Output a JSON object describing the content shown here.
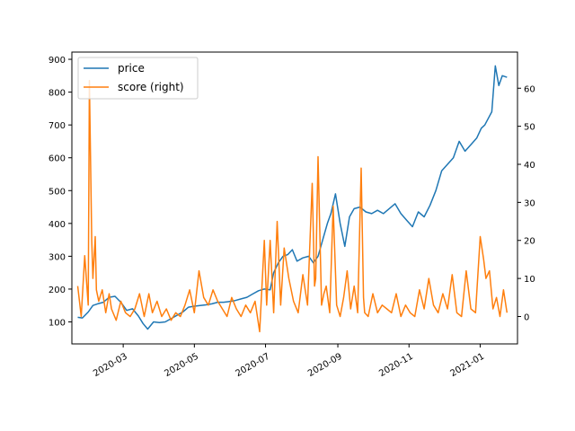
{
  "chart_data": {
    "type": "line",
    "title": "",
    "xlabel": "",
    "ylabel": "",
    "y2label": "",
    "xlim": [
      "2020-01-17",
      "2021-02-02"
    ],
    "ylim": [
      33,
      922
    ],
    "y2lim": [
      -7.2,
      69.5
    ],
    "x_ticks": [
      "2020-03",
      "2020-05",
      "2020-07",
      "2020-09",
      "2020-11",
      "2021-01"
    ],
    "x_tick_dates": [
      "2020-03-01",
      "2020-05-01",
      "2020-07-01",
      "2020-09-01",
      "2020-11-01",
      "2021-01-01"
    ],
    "y_ticks": [
      "100",
      "200",
      "300",
      "400",
      "500",
      "600",
      "700",
      "800",
      "900"
    ],
    "y2_ticks": [
      "0",
      "10",
      "20",
      "30",
      "40",
      "50",
      "60"
    ],
    "legend": {
      "position": "upper-left",
      "entries": [
        "price",
        "score (right)"
      ]
    },
    "colors": {
      "price": "#1f77b4",
      "score": "#ff7f0e"
    },
    "series": [
      {
        "name": "price",
        "axis": "left",
        "x": [
          "2020-01-22",
          "2020-01-26",
          "2020-01-31",
          "2020-02-04",
          "2020-02-08",
          "2020-02-13",
          "2020-02-18",
          "2020-02-23",
          "2020-02-28",
          "2020-03-04",
          "2020-03-09",
          "2020-03-14",
          "2020-03-18",
          "2020-03-22",
          "2020-03-27",
          "2020-04-01",
          "2020-04-06",
          "2020-04-11",
          "2020-04-16",
          "2020-04-21",
          "2020-04-26",
          "2020-05-01",
          "2020-05-06",
          "2020-05-11",
          "2020-05-16",
          "2020-05-21",
          "2020-05-26",
          "2020-05-31",
          "2020-06-05",
          "2020-06-10",
          "2020-06-15",
          "2020-06-20",
          "2020-06-25",
          "2020-06-30",
          "2020-07-05",
          "2020-07-08",
          "2020-07-12",
          "2020-07-16",
          "2020-07-20",
          "2020-07-24",
          "2020-07-28",
          "2020-08-02",
          "2020-08-07",
          "2020-08-11",
          "2020-08-15",
          "2020-08-19",
          "2020-08-23",
          "2020-08-26",
          "2020-08-30",
          "2020-09-03",
          "2020-09-07",
          "2020-09-11",
          "2020-09-15",
          "2020-09-20",
          "2020-09-25",
          "2020-09-30",
          "2020-10-05",
          "2020-10-10",
          "2020-10-15",
          "2020-10-20",
          "2020-10-25",
          "2020-10-30",
          "2020-11-04",
          "2020-11-09",
          "2020-11-14",
          "2020-11-19",
          "2020-11-24",
          "2020-11-29",
          "2020-12-04",
          "2020-12-09",
          "2020-12-14",
          "2020-12-19",
          "2020-12-24",
          "2020-12-29",
          "2021-01-02",
          "2021-01-05",
          "2021-01-08",
          "2021-01-11",
          "2021-01-14",
          "2021-01-17",
          "2021-01-20",
          "2021-01-24"
        ],
        "values": [
          114,
          112,
          130,
          150,
          155,
          160,
          175,
          178,
          160,
          135,
          140,
          118,
          95,
          78,
          100,
          98,
          100,
          110,
          120,
          130,
          145,
          148,
          150,
          152,
          155,
          160,
          160,
          162,
          165,
          170,
          175,
          185,
          195,
          200,
          198,
          250,
          280,
          300,
          305,
          320,
          285,
          295,
          300,
          280,
          300,
          350,
          400,
          430,
          490,
          400,
          330,
          420,
          445,
          450,
          435,
          430,
          440,
          430,
          445,
          460,
          430,
          410,
          390,
          435,
          420,
          455,
          500,
          560,
          580,
          600,
          650,
          620,
          640,
          660,
          690,
          700,
          720,
          740,
          880,
          820,
          850,
          845
        ]
      },
      {
        "name": "score (right)",
        "axis": "right",
        "x": [
          "2020-01-22",
          "2020-01-25",
          "2020-01-28",
          "2020-01-31",
          "2020-02-01",
          "2020-02-03",
          "2020-02-04",
          "2020-02-06",
          "2020-02-07",
          "2020-02-09",
          "2020-02-12",
          "2020-02-15",
          "2020-02-18",
          "2020-02-20",
          "2020-02-24",
          "2020-02-28",
          "2020-03-03",
          "2020-03-07",
          "2020-03-11",
          "2020-03-15",
          "2020-03-19",
          "2020-03-23",
          "2020-03-26",
          "2020-03-30",
          "2020-04-03",
          "2020-04-07",
          "2020-04-11",
          "2020-04-15",
          "2020-04-19",
          "2020-04-23",
          "2020-04-27",
          "2020-05-01",
          "2020-05-05",
          "2020-05-09",
          "2020-05-13",
          "2020-05-17",
          "2020-05-21",
          "2020-05-25",
          "2020-05-29",
          "2020-06-02",
          "2020-06-06",
          "2020-06-10",
          "2020-06-14",
          "2020-06-18",
          "2020-06-22",
          "2020-06-26",
          "2020-06-30",
          "2020-07-02",
          "2020-07-05",
          "2020-07-08",
          "2020-07-11",
          "2020-07-14",
          "2020-07-17",
          "2020-07-21",
          "2020-07-25",
          "2020-07-29",
          "2020-08-02",
          "2020-08-06",
          "2020-08-10",
          "2020-08-12",
          "2020-08-13",
          "2020-08-15",
          "2020-08-18",
          "2020-08-20",
          "2020-08-22",
          "2020-08-25",
          "2020-08-28",
          "2020-08-31",
          "2020-09-03",
          "2020-09-06",
          "2020-09-09",
          "2020-09-12",
          "2020-09-15",
          "2020-09-18",
          "2020-09-21",
          "2020-09-23",
          "2020-09-24",
          "2020-09-27",
          "2020-10-01",
          "2020-10-05",
          "2020-10-09",
          "2020-10-13",
          "2020-10-17",
          "2020-10-21",
          "2020-10-25",
          "2020-10-29",
          "2020-11-02",
          "2020-11-06",
          "2020-11-10",
          "2020-11-14",
          "2020-11-18",
          "2020-11-22",
          "2020-11-26",
          "2020-11-30",
          "2020-12-04",
          "2020-12-08",
          "2020-12-12",
          "2020-12-16",
          "2020-12-20",
          "2020-12-24",
          "2020-12-28",
          "2021-01-01",
          "2021-01-04",
          "2021-01-06",
          "2021-01-09",
          "2021-01-12",
          "2021-01-15",
          "2021-01-18",
          "2021-01-21",
          "2021-01-24"
        ],
        "values": [
          8,
          0,
          16,
          3,
          62,
          20,
          10,
          21,
          7,
          4,
          7,
          1,
          6,
          2,
          -1,
          4,
          1,
          0,
          2,
          6,
          0,
          6,
          1,
          4,
          0,
          2,
          -1,
          1,
          0,
          3,
          7,
          1,
          12,
          5,
          3,
          7,
          4,
          2,
          0,
          5,
          2,
          0,
          3,
          1,
          4,
          -4,
          20,
          3,
          20,
          1,
          25,
          3,
          18,
          10,
          4,
          1,
          11,
          3,
          35,
          8,
          10,
          42,
          3,
          6,
          8,
          1,
          29,
          3,
          0,
          5,
          12,
          2,
          8,
          1,
          39,
          5,
          1,
          0,
          6,
          1,
          3,
          2,
          1,
          6,
          0,
          3,
          1,
          0,
          7,
          2,
          10,
          3,
          1,
          6,
          2,
          11,
          1,
          0,
          12,
          2,
          1,
          21,
          15,
          10,
          12,
          2,
          5,
          0,
          7,
          1
        ]
      }
    ]
  }
}
